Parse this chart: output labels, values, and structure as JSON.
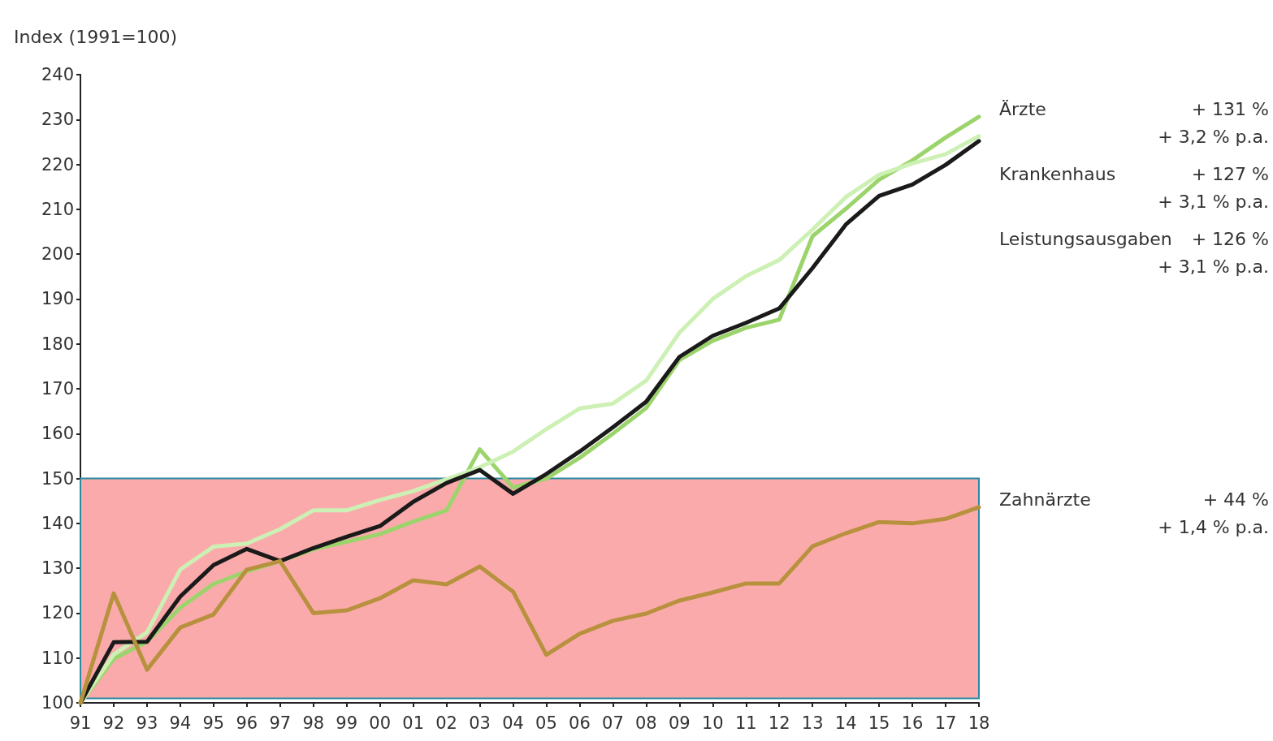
{
  "chart_data": {
    "type": "line",
    "ylabel": "Index (1991=100)",
    "categories": [
      "91",
      "92",
      "93",
      "94",
      "95",
      "96",
      "97",
      "98",
      "99",
      "00",
      "01",
      "02",
      "03",
      "04",
      "05",
      "06",
      "07",
      "08",
      "09",
      "10",
      "11",
      "12",
      "13",
      "14",
      "15",
      "16",
      "17",
      "18"
    ],
    "series": [
      {
        "name": "Ärzte",
        "color": "#9cd46c",
        "values": [
          100,
          109.8,
          113.6,
          121.2,
          126.5,
          129.3,
          131.6,
          134.2,
          135.9,
          137.6,
          140.4,
          142.9,
          156.5,
          148,
          150,
          154.6,
          160,
          165.7,
          176.4,
          180.7,
          183.6,
          185.4,
          204,
          210.1,
          216.6,
          220.9,
          226,
          230.6
        ]
      },
      {
        "name": "Krankenhaus",
        "color": "#cdf0b4",
        "values": [
          100,
          110.8,
          115.7,
          129.7,
          134.8,
          135.5,
          138.7,
          142.9,
          142.9,
          145.2,
          147.2,
          149.8,
          152.5,
          156,
          161,
          165.6,
          166.7,
          171.8,
          182.5,
          190,
          195.1,
          198.7,
          205.5,
          212.7,
          217.7,
          220.2,
          222.3,
          226.3
        ]
      },
      {
        "name": "Leistungsausgaben",
        "color": "#1a1a1a",
        "values": [
          100,
          113.5,
          113.6,
          123.7,
          130.7,
          134.3,
          131.6,
          134.5,
          137,
          139.4,
          144.8,
          149,
          151.9,
          146.6,
          151,
          156,
          161.4,
          167.1,
          177.1,
          181.8,
          184.7,
          187.9,
          196.9,
          206.6,
          213,
          215.5,
          219.9,
          225.2
        ]
      },
      {
        "name": "Zahnärzte",
        "color": "#b8913e",
        "values": [
          100,
          124.4,
          107.4,
          116.8,
          119.7,
          129.7,
          131.6,
          120,
          120.6,
          123.3,
          127.3,
          126.4,
          130.4,
          124.8,
          110.7,
          115.4,
          118.3,
          119.9,
          122.8,
          124.6,
          126.6,
          126.6,
          134.9,
          137.8,
          140.3,
          140,
          141,
          143.6
        ]
      }
    ],
    "ylim": [
      100,
      240
    ],
    "yticks": [
      100,
      110,
      120,
      130,
      140,
      150,
      160,
      170,
      180,
      190,
      200,
      210,
      220,
      230,
      240
    ],
    "bands": [
      {
        "axis": "y",
        "from": 101,
        "to": 150,
        "color": "#fbaaab"
      }
    ],
    "annotations": [
      "+ 131 %",
      "+ 3,2 % p.a.",
      "+ 127 %",
      "+ 3,1 % p.a.",
      "+ 126 %",
      "+ 3,1 % p.a.",
      "+ 44 %",
      "+ 1,4 % p.a."
    ],
    "marker": "none",
    "line_style": "solid",
    "grid": false
  }
}
